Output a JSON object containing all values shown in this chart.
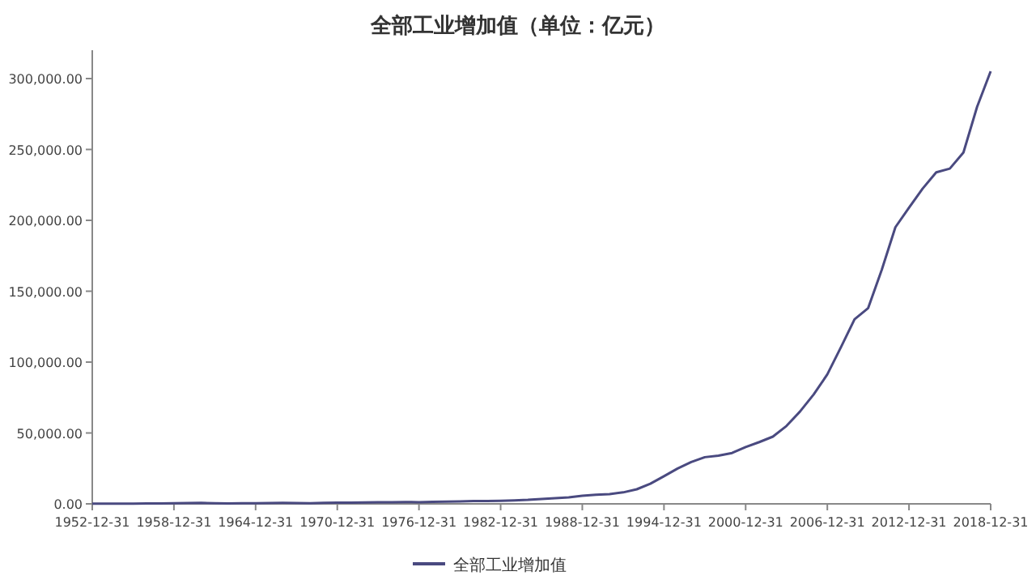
{
  "chart_data": {
    "type": "line",
    "title": "全部工业增加值（单位：亿元）",
    "categories": [
      "1952-12-31",
      null,
      null,
      null,
      null,
      null,
      "1958-12-31",
      null,
      null,
      null,
      null,
      null,
      "1964-12-31",
      null,
      null,
      null,
      null,
      null,
      "1970-12-31",
      null,
      null,
      null,
      null,
      null,
      "1976-12-31",
      null,
      null,
      null,
      null,
      null,
      "1982-12-31",
      null,
      null,
      null,
      null,
      null,
      "1988-12-31",
      null,
      null,
      null,
      null,
      null,
      "1994-12-31",
      null,
      null,
      null,
      null,
      null,
      "2000-12-31",
      null,
      null,
      null,
      null,
      null,
      "2006-12-31",
      null,
      null,
      null,
      null,
      null,
      "2012-12-31",
      null,
      null,
      null,
      null,
      null,
      "2018-12-31"
    ],
    "series": [
      {
        "name": "全部工业增加值",
        "color": "#4a4a80",
        "values": [
          120,
          163,
          184,
          191,
          224,
          271,
          483,
          615,
          649,
          388,
          326,
          367,
          450,
          546,
          649,
          545,
          493,
          672,
          828,
          926,
          989,
          1072,
          1083,
          1244,
          1204,
          1372,
          1622,
          1770,
          1997,
          2048,
          2162,
          2375,
          2789,
          3448,
          3967,
          4586,
          5777,
          6484,
          6858,
          8087,
          10284,
          14188,
          19480,
          24950,
          29447,
          32921,
          34018,
          35861,
          40034,
          43581,
          47431,
          54946,
          65210,
          77231,
          91311,
          110535,
          130260,
          138096,
          165126,
          195142,
          208906,
          222338,
          233856,
          236506,
          247878,
          279997,
          305160
        ]
      }
    ],
    "ylim": [
      0,
      320000
    ],
    "yticks": [
      {
        "value": 0,
        "label": "0.00"
      },
      {
        "value": 50000,
        "label": "50,000.00"
      },
      {
        "value": 100000,
        "label": "100,000.00"
      },
      {
        "value": 150000,
        "label": "150,000.00"
      },
      {
        "value": 200000,
        "label": "200,000.00"
      },
      {
        "value": 250000,
        "label": "250,000.00"
      },
      {
        "value": 300000,
        "label": "300,000.00"
      }
    ],
    "legend": "bottom"
  }
}
